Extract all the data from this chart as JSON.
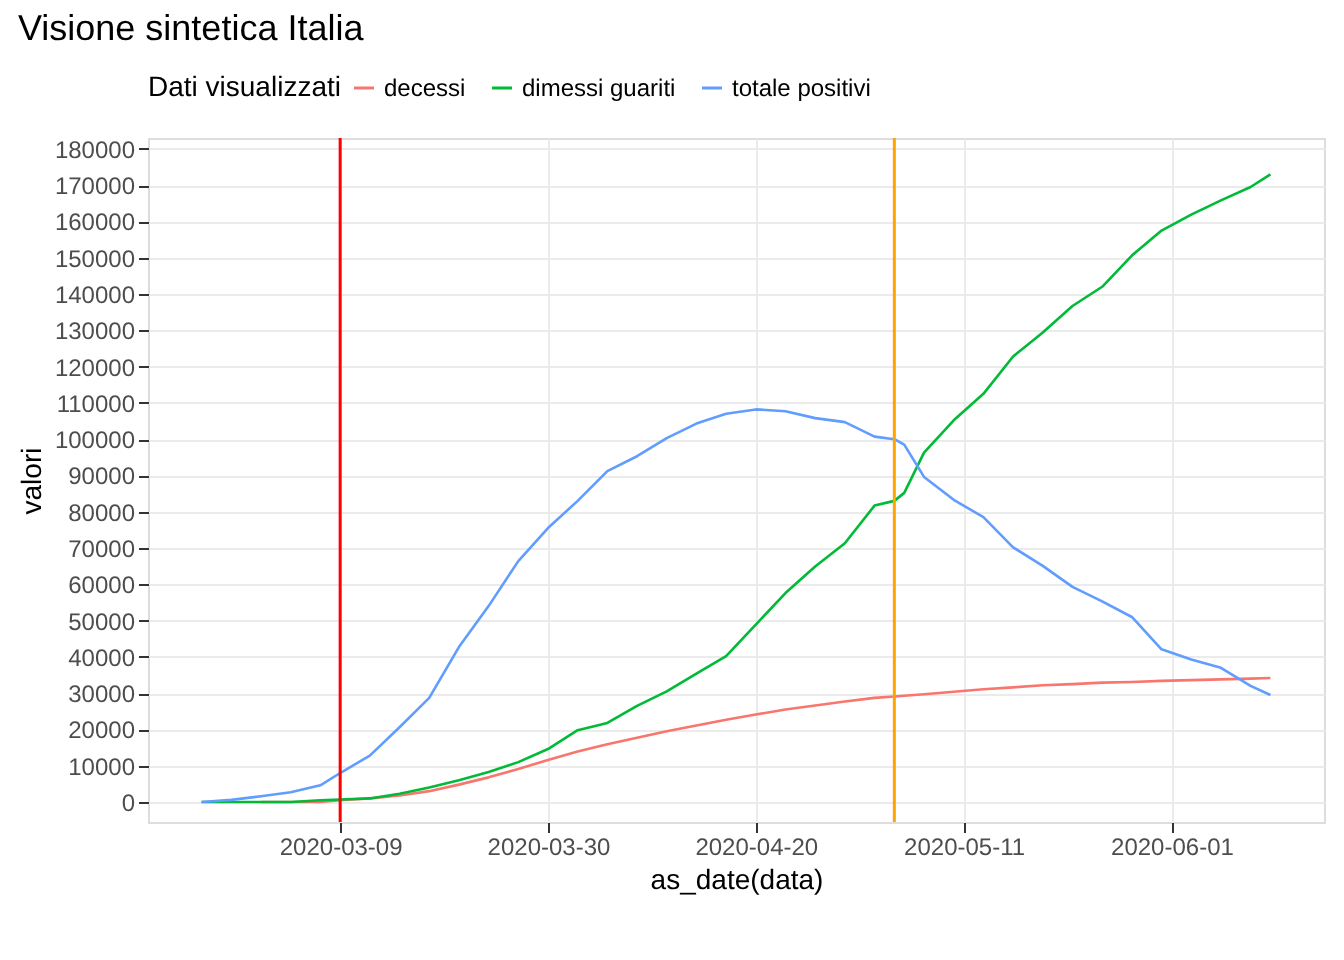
{
  "chart_data": {
    "type": "line",
    "title": "Visione sintetica Italia",
    "xlabel": "as_date(data)",
    "ylabel": "valori",
    "legend_title": "Dati visualizzati",
    "x": [
      "2020-02-24",
      "2020-02-27",
      "2020-03-01",
      "2020-03-04",
      "2020-03-07",
      "2020-03-09",
      "2020-03-12",
      "2020-03-15",
      "2020-03-18",
      "2020-03-21",
      "2020-03-24",
      "2020-03-27",
      "2020-03-30",
      "2020-04-02",
      "2020-04-05",
      "2020-04-08",
      "2020-04-11",
      "2020-04-14",
      "2020-04-17",
      "2020-04-20",
      "2020-04-23",
      "2020-04-26",
      "2020-04-29",
      "2020-05-02",
      "2020-05-04",
      "2020-05-05",
      "2020-05-07",
      "2020-05-10",
      "2020-05-13",
      "2020-05-16",
      "2020-05-19",
      "2020-05-22",
      "2020-05-25",
      "2020-05-28",
      "2020-05-31",
      "2020-06-03",
      "2020-06-06",
      "2020-06-09",
      "2020-06-11"
    ],
    "series": [
      {
        "name": "decessi",
        "color": "#f8766d",
        "values": [
          null,
          null,
          0,
          0,
          0,
          500,
          1000,
          1800,
          3000,
          4800,
          6800,
          9100,
          11600,
          13900,
          15900,
          17700,
          19500,
          21100,
          22700,
          24100,
          25500,
          26600,
          27700,
          28700,
          29100,
          29300,
          29700,
          30400,
          31100,
          31600,
          32200,
          32500,
          32900,
          33100,
          33400,
          33600,
          33800,
          34000,
          34200
        ]
      },
      {
        "name": "dimessi guariti",
        "color": "#00ba38",
        "values": [
          0,
          0,
          0,
          0,
          500,
          700,
          1000,
          2300,
          4000,
          6000,
          8300,
          11000,
          14600,
          19800,
          21800,
          26500,
          30500,
          35400,
          40200,
          48900,
          57600,
          64900,
          71300,
          81700,
          83000,
          85200,
          96300,
          105200,
          112500,
          122800,
          129400,
          136700,
          142000,
          150600,
          157500,
          161900,
          165800,
          169500,
          173000
        ]
      },
      {
        "name": "totale positivi",
        "color": "#619cff",
        "values": [
          0,
          600,
          1600,
          2700,
          4600,
          8000,
          12800,
          20600,
          28700,
          42700,
          54000,
          66400,
          75500,
          83000,
          91200,
          95300,
          100300,
          104300,
          107000,
          108200,
          107700,
          105800,
          104700,
          100700,
          100000,
          98500,
          89600,
          83300,
          78500,
          70200,
          65100,
          59300,
          55300,
          51000,
          42100,
          39300,
          37000,
          32000,
          29500
        ]
      }
    ],
    "xlim": [
      "2020-02-18T14:00",
      "2020-06-16T10:00"
    ],
    "xticks": [
      {
        "value": "2020-03-09",
        "label": "2020-03-09"
      },
      {
        "value": "2020-03-30",
        "label": "2020-03-30"
      },
      {
        "value": "2020-04-20",
        "label": "2020-04-20"
      },
      {
        "value": "2020-05-11",
        "label": "2020-05-11"
      },
      {
        "value": "2020-06-01",
        "label": "2020-06-01"
      }
    ],
    "ylim": [
      -5500,
      183000
    ],
    "yticks": [
      0,
      10000,
      20000,
      30000,
      40000,
      50000,
      60000,
      70000,
      80000,
      90000,
      100000,
      110000,
      120000,
      130000,
      140000,
      150000,
      160000,
      170000,
      180000
    ],
    "ref_lines": [
      {
        "axis": "x",
        "value": "2020-03-09",
        "color": "#ff0000",
        "line_style": "solid"
      },
      {
        "axis": "x",
        "value": "2020-05-04",
        "color": "#ffa500",
        "line_style": "solid"
      }
    ],
    "grid": true,
    "legend": "top",
    "marker": "none",
    "line_style": "solid"
  }
}
